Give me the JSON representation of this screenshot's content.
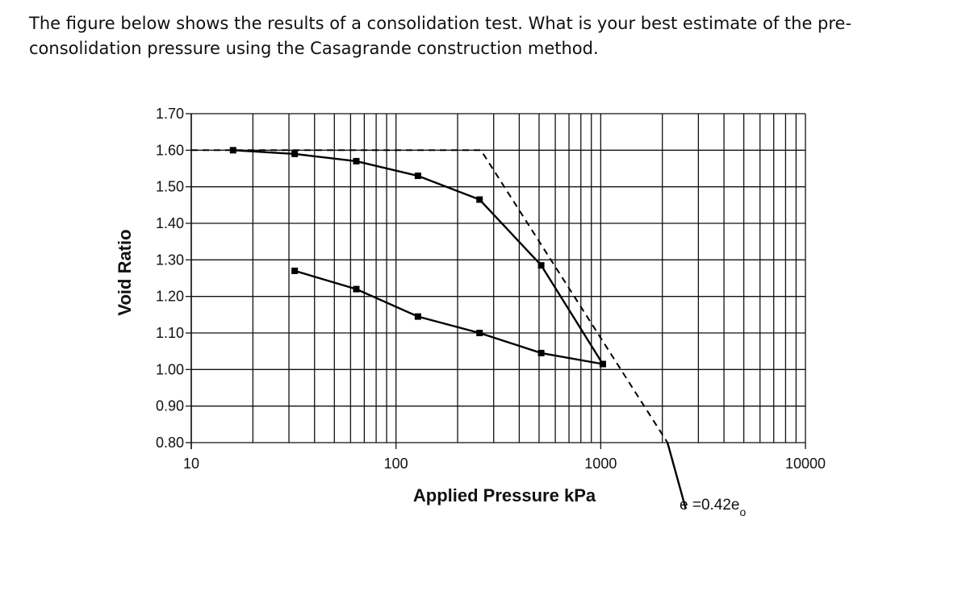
{
  "question": {
    "text": "The figure below shows the results of a consolidation test. What is your best estimate of the pre-consolidation pressure using the Casagrande construction method."
  },
  "chart_data": {
    "type": "line",
    "title": "",
    "xlabel": "Applied Pressure  kPa",
    "ylabel": "Void Ratio",
    "x_scale": "log",
    "xlim": [
      10,
      10000
    ],
    "ylim": [
      0.8,
      1.7
    ],
    "x_ticks": [
      10,
      100,
      1000,
      10000
    ],
    "x_tick_labels": [
      "10",
      "100",
      "1000",
      "10000"
    ],
    "y_ticks": [
      0.8,
      0.9,
      1.0,
      1.1,
      1.2,
      1.3,
      1.4,
      1.5,
      1.6,
      1.7
    ],
    "y_tick_labels": [
      "0.80",
      "0.90",
      "1.00",
      "1.10",
      "1.20",
      "1.30",
      "1.40",
      "1.50",
      "1.60",
      "1.70"
    ],
    "grid": true,
    "legend": "none",
    "series": [
      {
        "style": "solid",
        "markers": "square",
        "x": [
          16,
          32,
          64,
          128,
          256,
          512,
          1024
        ],
        "y": [
          1.6,
          1.59,
          1.57,
          1.53,
          1.465,
          1.285,
          1.015
        ]
      },
      {
        "style": "solid",
        "markers": "square",
        "x": [
          1024,
          512,
          256,
          128,
          64,
          32
        ],
        "y": [
          1.015,
          1.045,
          1.1,
          1.145,
          1.22,
          1.27
        ]
      },
      {
        "style": "dashed",
        "markers": "none",
        "x": [
          10,
          260,
          2120
        ],
        "y": [
          1.6,
          1.6,
          0.8
        ]
      },
      {
        "style": "solid",
        "markers": "none",
        "x": [
          2120,
          2600
        ],
        "y": [
          0.8,
          0.62
        ]
      }
    ],
    "annotations": [
      {
        "text": "e =0.42e",
        "subscript": "o",
        "x": 2600,
        "y": 0.62
      }
    ]
  }
}
